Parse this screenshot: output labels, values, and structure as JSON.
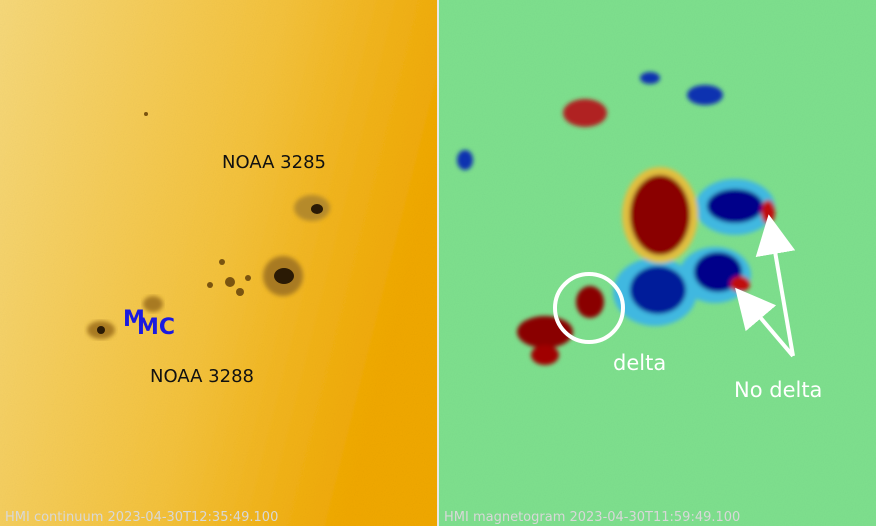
{
  "left_panel": {
    "labels": [
      "NOAA 3285",
      "NOAA 3288"
    ],
    "markers": [
      "M",
      "MC"
    ],
    "caption": "HMI continuum 2023-04-30T12:35:49.100"
  },
  "right_panel": {
    "annotations": [
      "delta",
      "No delta"
    ],
    "caption": "HMI magnetogram 2023-04-30T11:59:49.100"
  }
}
